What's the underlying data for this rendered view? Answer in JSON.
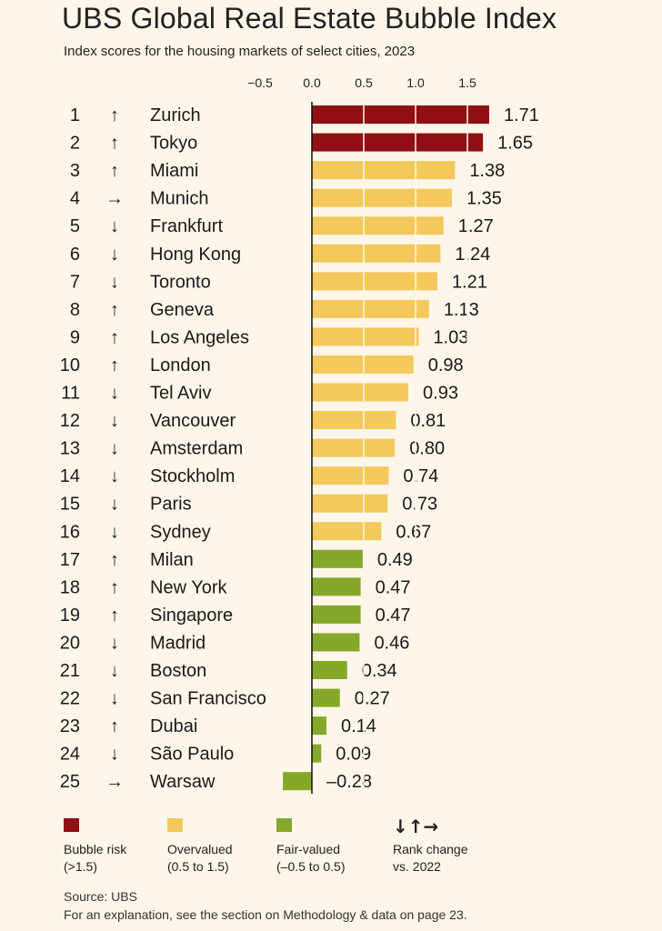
{
  "header": {
    "title": "UBS Global Real Estate Bubble Index",
    "subtitle": "Index scores for the housing markets of select cities, 2023"
  },
  "colors": {
    "bubble": "#8f0f14",
    "overvalued": "#f2c95a",
    "fair": "#85a82a",
    "background": "#fdf6e9"
  },
  "chart_data": {
    "type": "bar",
    "orientation": "horizontal",
    "title": "UBS Global Real Estate Bubble Index",
    "subtitle": "Index scores for the housing markets of select cities, 2023",
    "xlim": [
      -0.5,
      1.75
    ],
    "x_ticks": [
      "−0.5",
      "0.0",
      "0.5",
      "1.0",
      "1.5"
    ],
    "x_tick_values": [
      -0.5,
      0,
      0.5,
      1.0,
      1.5
    ],
    "grid": false,
    "rows": [
      {
        "rank": "1",
        "change": "up",
        "city": "Zurich",
        "value": 1.71,
        "label": "1.71",
        "category": "bubble"
      },
      {
        "rank": "2",
        "change": "up",
        "city": "Tokyo",
        "value": 1.65,
        "label": "1.65",
        "category": "bubble"
      },
      {
        "rank": "3",
        "change": "up",
        "city": "Miami",
        "value": 1.38,
        "label": "1.38",
        "category": "overvalued"
      },
      {
        "rank": "4",
        "change": "same",
        "city": "Munich",
        "value": 1.35,
        "label": "1.35",
        "category": "overvalued"
      },
      {
        "rank": "5",
        "change": "down",
        "city": "Frankfurt",
        "value": 1.27,
        "label": "1.27",
        "category": "overvalued"
      },
      {
        "rank": "6",
        "change": "down",
        "city": "Hong Kong",
        "value": 1.24,
        "label": "1.24",
        "category": "overvalued"
      },
      {
        "rank": "7",
        "change": "down",
        "city": "Toronto",
        "value": 1.21,
        "label": "1.21",
        "category": "overvalued"
      },
      {
        "rank": "8",
        "change": "up",
        "city": "Geneva",
        "value": 1.13,
        "label": "1.13",
        "category": "overvalued"
      },
      {
        "rank": "9",
        "change": "up",
        "city": "Los Angeles",
        "value": 1.03,
        "label": "1.03",
        "category": "overvalued"
      },
      {
        "rank": "10",
        "change": "up",
        "city": "London",
        "value": 0.98,
        "label": "0.98",
        "category": "overvalued"
      },
      {
        "rank": "11",
        "change": "down",
        "city": "Tel Aviv",
        "value": 0.93,
        "label": "0.93",
        "category": "overvalued"
      },
      {
        "rank": "12",
        "change": "down",
        "city": "Vancouver",
        "value": 0.81,
        "label": "0.81",
        "category": "overvalued"
      },
      {
        "rank": "13",
        "change": "down",
        "city": "Amsterdam",
        "value": 0.8,
        "label": "0.80",
        "category": "overvalued"
      },
      {
        "rank": "14",
        "change": "down",
        "city": "Stockholm",
        "value": 0.74,
        "label": "0.74",
        "category": "overvalued"
      },
      {
        "rank": "15",
        "change": "down",
        "city": "Paris",
        "value": 0.73,
        "label": "0.73",
        "category": "overvalued"
      },
      {
        "rank": "16",
        "change": "down",
        "city": "Sydney",
        "value": 0.67,
        "label": "0.67",
        "category": "overvalued"
      },
      {
        "rank": "17",
        "change": "up",
        "city": "Milan",
        "value": 0.49,
        "label": "0.49",
        "category": "fair"
      },
      {
        "rank": "18",
        "change": "up",
        "city": "New York",
        "value": 0.47,
        "label": "0.47",
        "category": "fair"
      },
      {
        "rank": "19",
        "change": "up",
        "city": "Singapore",
        "value": 0.47,
        "label": "0.47",
        "category": "fair"
      },
      {
        "rank": "20",
        "change": "down",
        "city": "Madrid",
        "value": 0.46,
        "label": "0.46",
        "category": "fair"
      },
      {
        "rank": "21",
        "change": "down",
        "city": "Boston",
        "value": 0.34,
        "label": "0.34",
        "category": "fair"
      },
      {
        "rank": "22",
        "change": "down",
        "city": "San Francisco",
        "value": 0.27,
        "label": "0.27",
        "category": "fair"
      },
      {
        "rank": "23",
        "change": "up",
        "city": "Dubai",
        "value": 0.14,
        "label": "0.14",
        "category": "fair"
      },
      {
        "rank": "24",
        "change": "down",
        "city": "São Paulo",
        "value": 0.09,
        "label": "0.09",
        "category": "fair"
      },
      {
        "rank": "25",
        "change": "same",
        "city": "Warsaw",
        "value": -0.28,
        "label": "–0.28",
        "category": "fair"
      }
    ]
  },
  "legend": {
    "bubble": {
      "line1": "Bubble risk",
      "line2": "(>1.5)"
    },
    "overvalued": {
      "line1": "Overvalued",
      "line2": "(0.5 to 1.5)"
    },
    "fair": {
      "line1": "Fair-valued",
      "line2": "(–0.5 to 0.5)"
    },
    "rank_change": {
      "arrows": "↓↑→",
      "line1": "Rank change",
      "line2": "vs. 2022"
    }
  },
  "footer": {
    "source": "Source: UBS",
    "note": "For an explanation, see the section on Methodology & data on page 23."
  }
}
